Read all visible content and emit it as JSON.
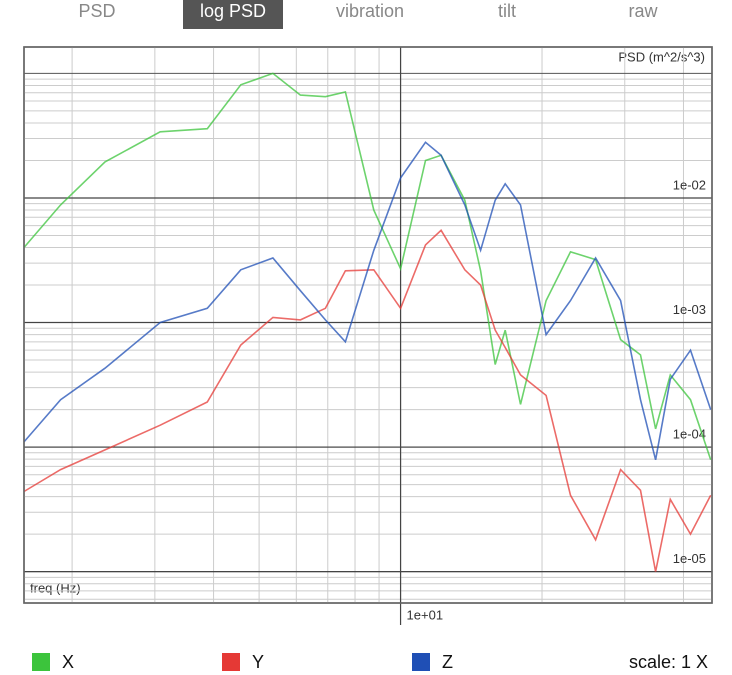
{
  "tabs": {
    "items": [
      "PSD",
      "log PSD",
      "vibration",
      "tilt",
      "raw"
    ],
    "selected": 1
  },
  "chart_data": {
    "type": "line",
    "y_label": "PSD (m^2/s^3)",
    "x_label": "freq (Hz)",
    "log_x": true,
    "log_y": true,
    "grid": true,
    "x": [
      1.58,
      1.89,
      2.35,
      3.08,
      3.88,
      4.57,
      5.35,
      6.12,
      6.92,
      7.63,
      8.77,
      10,
      11.3,
      12.2,
      13.7,
      14.8,
      15.9,
      16.7,
      18.0,
      20.4,
      23.0,
      26.0,
      29.4,
      32.4,
      34.9,
      37.5,
      41.4,
      45.7
    ],
    "series": [
      {
        "name": "X",
        "color": "#3cc43c",
        "values": [
          0.004,
          0.0088,
          0.0195,
          0.034,
          0.036,
          0.081,
          0.1,
          0.067,
          0.065,
          0.071,
          0.008,
          0.0027,
          0.02,
          0.022,
          0.0096,
          0.0026,
          0.00046,
          0.00087,
          0.00022,
          0.0015,
          0.0037,
          0.0032,
          0.00073,
          0.00055,
          0.00014,
          0.00038,
          0.00024,
          7.9e-05
        ]
      },
      {
        "name": "Y",
        "color": "#e53935",
        "values": [
          4.4e-05,
          6.6e-05,
          9.5e-05,
          0.00015,
          0.00023,
          0.00066,
          0.0011,
          0.00105,
          0.0013,
          0.0026,
          0.00265,
          0.0013,
          0.0042,
          0.0055,
          0.00265,
          0.002,
          0.00087,
          0.00063,
          0.00038,
          0.00026,
          4.1e-05,
          1.8e-05,
          6.6e-05,
          4.5e-05,
          1e-05,
          3.8e-05,
          2e-05,
          4.1e-05
        ]
      },
      {
        "name": "Z",
        "color": "#1f4fb5",
        "values": [
          0.00011,
          0.00024,
          0.00043,
          0.001,
          0.0013,
          0.00265,
          0.0033,
          0.0018,
          0.00105,
          0.0007,
          0.0038,
          0.0145,
          0.028,
          0.022,
          0.0088,
          0.0038,
          0.0096,
          0.013,
          0.0088,
          0.0008,
          0.0015,
          0.0033,
          0.0015,
          0.00024,
          7.9e-05,
          0.00035,
          0.0006,
          0.0002
        ]
      }
    ],
    "xlim": [
      1.58,
      46
    ],
    "ylim": [
      5.6e-06,
      0.163
    ],
    "xticks": [
      {
        "value": 10,
        "label": "1e+01"
      }
    ],
    "yticks": [
      {
        "value": 0.01,
        "label": "1e-02"
      },
      {
        "value": 0.001,
        "label": "1e-03"
      },
      {
        "value": 0.0001,
        "label": "1e-04"
      },
      {
        "value": 1e-05,
        "label": "1e-05"
      }
    ],
    "scale_label": "scale: 1 X"
  }
}
